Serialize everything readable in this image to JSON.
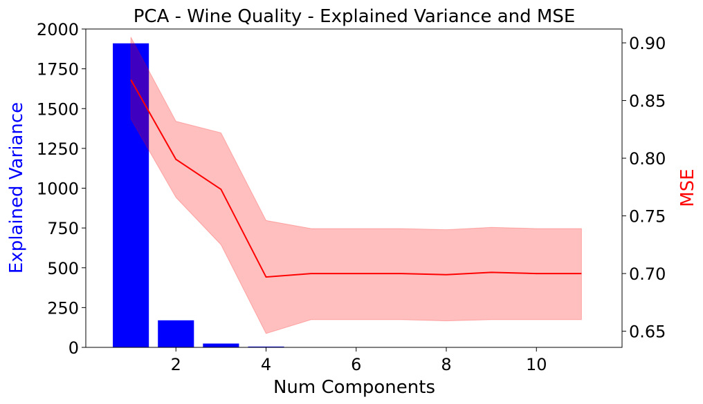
{
  "chart_data": {
    "type": "bar+line",
    "title": "PCA - Wine Quality - Explained Variance and MSE",
    "xlabel": "Num Components",
    "y_left_label": "Explained Variance",
    "y_right_label": "MSE",
    "xlim": [
      0.0,
      11.9
    ],
    "y_left_lim": [
      0,
      2000
    ],
    "y_right_lim": [
      0.636,
      0.912
    ],
    "x_ticks": [
      "2",
      "4",
      "6",
      "8",
      "10"
    ],
    "y_left_ticks": [
      "0",
      "250",
      "500",
      "750",
      "1000",
      "1250",
      "1500",
      "1750",
      "2000"
    ],
    "y_right_ticks": [
      "0.65",
      "0.70",
      "0.75",
      "0.80",
      "0.85",
      "0.90"
    ],
    "bars": {
      "color": "#0000ff",
      "x": [
        1,
        2,
        3,
        4
      ],
      "values": [
        1910,
        170,
        24,
        5
      ]
    },
    "line": {
      "color": "#ff0000",
      "band_color": "#ff0000",
      "x": [
        1,
        2,
        3,
        4,
        5,
        6,
        7,
        8,
        9,
        10,
        11
      ],
      "mean": [
        0.868,
        0.799,
        0.773,
        0.697,
        0.7,
        0.7,
        0.7,
        0.699,
        0.701,
        0.7,
        0.7
      ],
      "upper": [
        0.905,
        0.832,
        0.822,
        0.746,
        0.739,
        0.739,
        0.739,
        0.738,
        0.74,
        0.739,
        0.739
      ],
      "lower": [
        0.834,
        0.766,
        0.725,
        0.648,
        0.66,
        0.66,
        0.66,
        0.659,
        0.66,
        0.66,
        0.66
      ]
    },
    "grid": false
  }
}
